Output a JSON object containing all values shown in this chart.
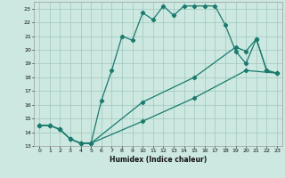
{
  "xlabel": "Humidex (Indice chaleur)",
  "bg_color": "#cce8e0",
  "grid_color": "#a0c8be",
  "line_color": "#1a7a6e",
  "xlim": [
    -0.5,
    23.5
  ],
  "ylim": [
    13,
    23.5
  ],
  "yticks": [
    13,
    14,
    15,
    16,
    17,
    18,
    19,
    20,
    21,
    22,
    23
  ],
  "xticks": [
    0,
    1,
    2,
    3,
    4,
    5,
    6,
    7,
    8,
    9,
    10,
    11,
    12,
    13,
    14,
    15,
    16,
    17,
    18,
    19,
    20,
    21,
    22,
    23
  ],
  "curve1_x": [
    0,
    1,
    2,
    3,
    4,
    5,
    6,
    7,
    8,
    9,
    10,
    11,
    12,
    13,
    14,
    15,
    16,
    17,
    18,
    19,
    20,
    21,
    22,
    23
  ],
  "curve1_y": [
    14.5,
    14.5,
    14.2,
    13.5,
    13.2,
    13.2,
    16.3,
    18.5,
    21.0,
    20.7,
    22.7,
    22.2,
    23.2,
    22.5,
    23.2,
    23.2,
    23.2,
    23.2,
    21.8,
    19.9,
    19.0,
    20.8,
    18.5,
    18.3
  ],
  "curve2_x": [
    0,
    1,
    2,
    3,
    4,
    5,
    10,
    15,
    19,
    20,
    21,
    22,
    23
  ],
  "curve2_y": [
    14.5,
    14.5,
    14.2,
    13.5,
    13.2,
    13.2,
    16.2,
    18.0,
    20.2,
    19.9,
    20.8,
    18.5,
    18.3
  ],
  "curve3_x": [
    0,
    1,
    2,
    3,
    4,
    5,
    10,
    15,
    20,
    23
  ],
  "curve3_y": [
    14.5,
    14.5,
    14.2,
    13.5,
    13.2,
    13.2,
    14.8,
    16.5,
    18.5,
    18.3
  ]
}
